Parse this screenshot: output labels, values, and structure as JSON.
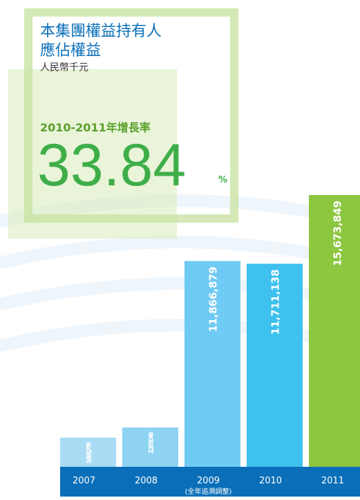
{
  "chart_data": {
    "type": "bar",
    "title_lines": [
      "本集團權益持有人",
      "應佔權益"
    ],
    "subtitle": "人民幣千元",
    "growth": {
      "label": "2010-2011年增長率",
      "value": 33.84,
      "unit": "%"
    },
    "categories": [
      "2007",
      "2008",
      "2009",
      "2010",
      "2011"
    ],
    "category_notes": [
      null,
      null,
      "(全年追溯調整)",
      null,
      null
    ],
    "values": [
      1683759,
      2267046,
      11866879,
      11711138,
      15673849
    ],
    "value_labels": [
      "1,683,759",
      "2,267,046",
      "11,866,879",
      "11,711,138",
      "15,673,849"
    ],
    "colors": [
      "#a9dcf4",
      "#8fd3f2",
      "#6fcbf3",
      "#3ec1ee",
      "#8dc63f"
    ],
    "axis_color": "#0a6fb8"
  }
}
